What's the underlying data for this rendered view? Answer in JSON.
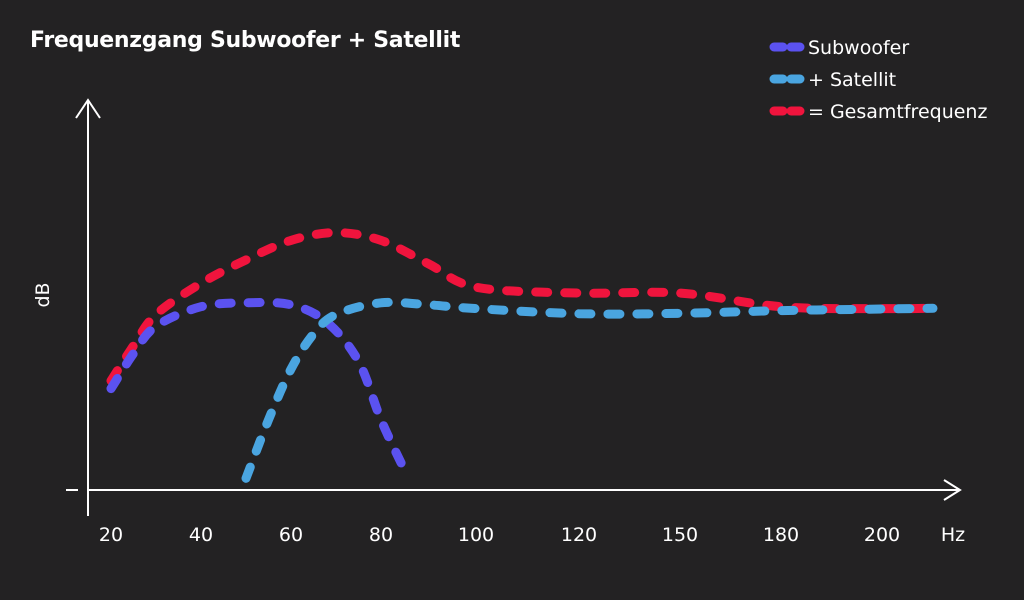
{
  "chart_data": {
    "type": "line",
    "title": "Frequenzgang Subwoofer + Satellit",
    "xlabel": "Hz",
    "ylabel": "dB",
    "x_ticks": [
      "20",
      "40",
      "60",
      "80",
      "100",
      "120",
      "150",
      "180",
      "200"
    ],
    "ylim": [
      0,
      100
    ],
    "grid": false,
    "legend_position": "top-right",
    "series": [
      {
        "name": "Subwoofer",
        "color": "#5b52f0",
        "x": [
          "20",
          "25",
          "30",
          "40",
          "50",
          "60",
          "68",
          "75",
          "80",
          "85"
        ],
        "values": [
          26,
          35,
          42,
          47,
          48,
          47.5,
          43,
          33,
          18,
          5
        ]
      },
      {
        "name": "+ Satellit",
        "color": "#4aa5e0",
        "x": [
          "50",
          "55",
          "60",
          "65",
          "70",
          "80",
          "90",
          "100",
          "120",
          "150",
          "180",
          "200",
          "210"
        ],
        "values": [
          3,
          18,
          31,
          40,
          45,
          48,
          47.5,
          46.5,
          45.2,
          45.3,
          46,
          46.4,
          46.6
        ]
      },
      {
        "name": "= Gesamtfrequenz",
        "color": "#f0143d",
        "x": [
          "20",
          "25",
          "30",
          "40",
          "50",
          "60",
          "70",
          "80",
          "90",
          "100",
          "120",
          "150",
          "180",
          "200",
          "210"
        ],
        "values": [
          28,
          37,
          45,
          53,
          59,
          64,
          66,
          64,
          58,
          52,
          50.5,
          50.5,
          47,
          46.5,
          46.6
        ]
      }
    ]
  }
}
